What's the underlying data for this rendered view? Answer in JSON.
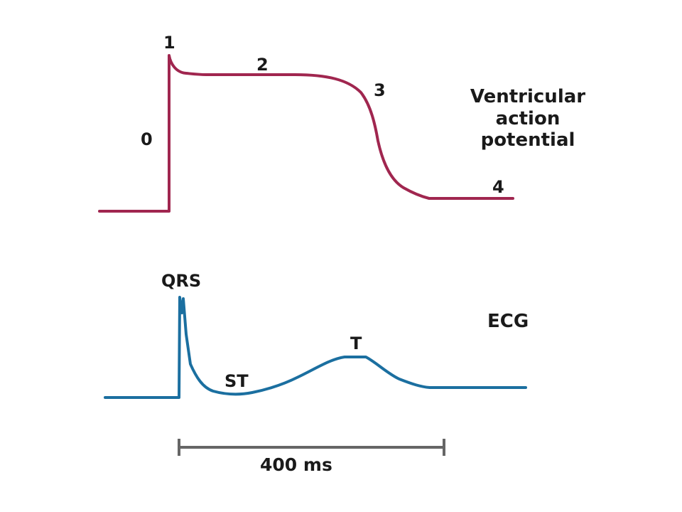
{
  "colors": {
    "action_potential": "#a0264f",
    "ecg": "#1b6fa0",
    "scale_bar": "#666666",
    "text": "#1a1a1a"
  },
  "action_potential": {
    "title_lines": [
      "Ventricular",
      "action",
      "potential"
    ],
    "phases": {
      "p0": "0",
      "p1": "1",
      "p2": "2",
      "p3": "3",
      "p4": "4"
    }
  },
  "ecg": {
    "title": "ECG",
    "waves": {
      "qrs": "QRS",
      "st": "ST",
      "t": "T"
    }
  },
  "scale_bar": {
    "label": "400 ms"
  }
}
